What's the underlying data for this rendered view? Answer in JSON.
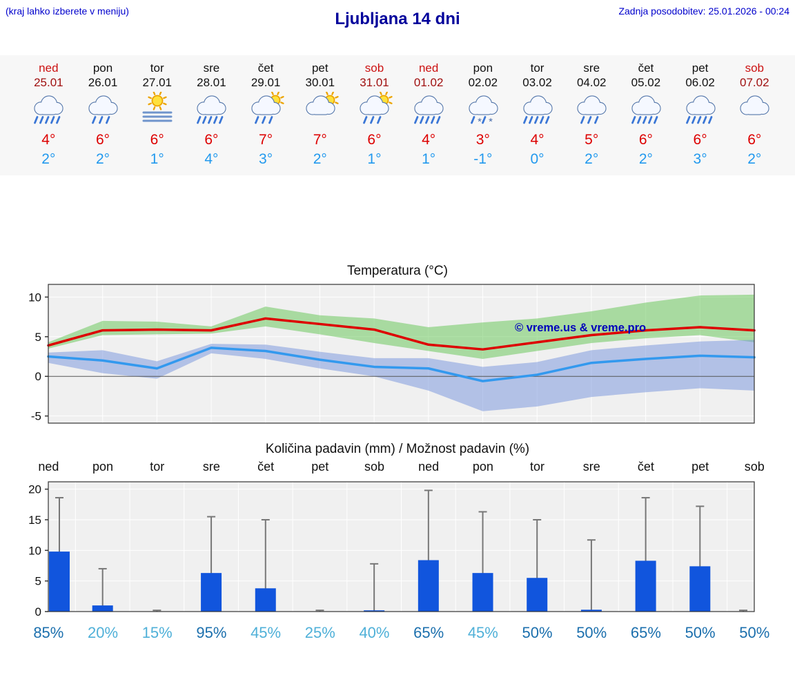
{
  "header": {
    "note": "(kraj lahko izberete v meniju)",
    "title": "Ljubljana 14 dni",
    "updated": "Zadnja posodobitev: 25.01.2026 - 00:24"
  },
  "colors": {
    "link_blue": "#0000cc",
    "title_blue": "#00009b",
    "weekend_red": "#cc1111",
    "tmax_red": "#dd0000",
    "tmin_blue": "#2299ee",
    "bar_blue": "#1155dd",
    "whisker_gray": "#777777",
    "prob_high": "#1b6fad",
    "prob_low": "#4fb0d8"
  },
  "days": [
    {
      "name": "ned",
      "date": "25.01",
      "weekend": true,
      "icon": "heavy-rain",
      "tmax": "4°",
      "tmin": "2°"
    },
    {
      "name": "pon",
      "date": "26.01",
      "weekend": false,
      "icon": "rain",
      "tmax": "6°",
      "tmin": "2°"
    },
    {
      "name": "tor",
      "date": "27.01",
      "weekend": false,
      "icon": "sun-fog",
      "tmax": "6°",
      "tmin": "1°"
    },
    {
      "name": "sre",
      "date": "28.01",
      "weekend": false,
      "icon": "heavy-rain",
      "tmax": "6°",
      "tmin": "4°"
    },
    {
      "name": "čet",
      "date": "29.01",
      "weekend": false,
      "icon": "sun-rain",
      "tmax": "7°",
      "tmin": "3°"
    },
    {
      "name": "pet",
      "date": "30.01",
      "weekend": false,
      "icon": "sun-cloud",
      "tmax": "7°",
      "tmin": "2°"
    },
    {
      "name": "sob",
      "date": "31.01",
      "weekend": true,
      "icon": "sun-rain",
      "tmax": "6°",
      "tmin": "1°"
    },
    {
      "name": "ned",
      "date": "01.02",
      "weekend": true,
      "icon": "heavy-rain",
      "tmax": "4°",
      "tmin": "1°"
    },
    {
      "name": "pon",
      "date": "02.02",
      "weekend": false,
      "icon": "sleet",
      "tmax": "3°",
      "tmin": "-1°"
    },
    {
      "name": "tor",
      "date": "03.02",
      "weekend": false,
      "icon": "heavy-rain",
      "tmax": "4°",
      "tmin": "0°"
    },
    {
      "name": "sre",
      "date": "04.02",
      "weekend": false,
      "icon": "rain",
      "tmax": "5°",
      "tmin": "2°"
    },
    {
      "name": "čet",
      "date": "05.02",
      "weekend": false,
      "icon": "heavy-rain",
      "tmax": "6°",
      "tmin": "2°"
    },
    {
      "name": "pet",
      "date": "06.02",
      "weekend": false,
      "icon": "heavy-rain",
      "tmax": "6°",
      "tmin": "3°"
    },
    {
      "name": "sob",
      "date": "07.02",
      "weekend": true,
      "icon": "cloudy",
      "tmax": "6°",
      "tmin": "2°"
    }
  ],
  "chart_data": [
    {
      "type": "line",
      "title": "Temperatura (°C)",
      "x_labels": [
        "ned",
        "pon",
        "tor",
        "sre",
        "čet",
        "pet",
        "sob",
        "ned",
        "pon",
        "tor",
        "sre",
        "čet",
        "pet",
        "sob"
      ],
      "ylim": [
        -5.9,
        11.6
      ],
      "yticks": [
        -5,
        0,
        5,
        10
      ],
      "grid": true,
      "watermark": "© vreme.us & vreme.pro",
      "series": [
        {
          "name": "temp-max",
          "color": "#dd0000",
          "values": [
            3.9,
            5.8,
            5.9,
            5.8,
            7.3,
            6.6,
            5.9,
            4.0,
            3.4,
            4.3,
            5.2,
            5.8,
            6.2,
            5.8
          ]
        },
        {
          "name": "temp-min",
          "color": "#3399ee",
          "values": [
            2.5,
            2.0,
            1.0,
            3.6,
            3.2,
            2.1,
            1.2,
            1.0,
            -0.6,
            0.2,
            1.7,
            2.2,
            2.6,
            2.4
          ]
        }
      ],
      "bands": [
        {
          "name": "temp-max-range",
          "color": "rgba(110,200,95,0.55)",
          "upper": [
            4.3,
            7.0,
            6.9,
            6.3,
            8.8,
            7.7,
            7.3,
            6.2,
            6.8,
            7.3,
            8.2,
            9.3,
            10.2,
            10.3
          ],
          "lower": [
            3.5,
            5.2,
            5.3,
            5.4,
            6.3,
            5.3,
            4.2,
            3.2,
            2.2,
            3.2,
            4.2,
            4.8,
            5.2,
            4.3
          ]
        },
        {
          "name": "temp-min-range",
          "color": "rgba(115,145,220,0.5)",
          "upper": [
            3.0,
            3.3,
            1.9,
            4.1,
            4.0,
            3.1,
            2.3,
            2.3,
            1.2,
            1.8,
            3.3,
            3.9,
            4.4,
            4.6
          ],
          "lower": [
            1.7,
            0.4,
            -0.3,
            2.9,
            2.2,
            1.0,
            0.0,
            -1.8,
            -4.4,
            -3.8,
            -2.6,
            -2.0,
            -1.5,
            -1.8
          ]
        }
      ]
    },
    {
      "type": "bar",
      "title": "Količina padavin (mm) / Možnost padavin (%)",
      "categories": [
        "ned",
        "pon",
        "tor",
        "sre",
        "čet",
        "pet",
        "sob",
        "ned",
        "pon",
        "tor",
        "sre",
        "čet",
        "pet",
        "sob"
      ],
      "values": [
        9.8,
        1.0,
        0.0,
        6.3,
        3.8,
        0.0,
        0.2,
        8.4,
        6.3,
        5.5,
        0.3,
        8.3,
        7.4,
        0.0
      ],
      "whisker_max": [
        18.6,
        7.0,
        0.2,
        15.5,
        15.0,
        0.2,
        7.8,
        19.8,
        16.3,
        15.0,
        11.7,
        18.6,
        17.2,
        0.2
      ],
      "probabilities": [
        "85%",
        "20%",
        "15%",
        "95%",
        "45%",
        "25%",
        "40%",
        "65%",
        "45%",
        "50%",
        "50%",
        "65%",
        "50%",
        "50%"
      ],
      "prob_high_flags": [
        true,
        false,
        false,
        true,
        false,
        false,
        false,
        true,
        false,
        true,
        true,
        true,
        true,
        true
      ],
      "ylim": [
        0,
        21.2
      ],
      "yticks": [
        0,
        5,
        10,
        15,
        20
      ],
      "grid": true
    }
  ]
}
